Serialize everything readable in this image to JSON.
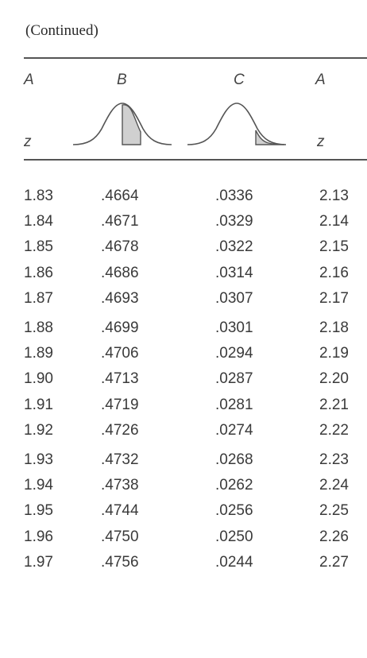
{
  "caption": "(Continued)",
  "headers": {
    "col1": "A",
    "col2": "B",
    "col3": "C",
    "col4": "A",
    "z_left": "z",
    "z_right": "z"
  },
  "curve_icons": [
    "normal-curve-b-shaded-center",
    "normal-curve-c-shaded-tail"
  ],
  "colors": {
    "shade": "#d0d0d0",
    "line": "#555555"
  },
  "rows": [
    {
      "z": "1.83",
      "b": ".4664",
      "c": ".0336",
      "z2": "2.13"
    },
    {
      "z": "1.84",
      "b": ".4671",
      "c": ".0329",
      "z2": "2.14"
    },
    {
      "z": "1.85",
      "b": ".4678",
      "c": ".0322",
      "z2": "2.15"
    },
    {
      "z": "1.86",
      "b": ".4686",
      "c": ".0314",
      "z2": "2.16"
    },
    {
      "z": "1.87",
      "b": ".4693",
      "c": ".0307",
      "z2": "2.17"
    },
    {
      "z": "1.88",
      "b": ".4699",
      "c": ".0301",
      "z2": "2.18"
    },
    {
      "z": "1.89",
      "b": ".4706",
      "c": ".0294",
      "z2": "2.19"
    },
    {
      "z": "1.90",
      "b": ".4713",
      "c": ".0287",
      "z2": "2.20"
    },
    {
      "z": "1.91",
      "b": ".4719",
      "c": ".0281",
      "z2": "2.21"
    },
    {
      "z": "1.92",
      "b": ".4726",
      "c": ".0274",
      "z2": "2.22"
    },
    {
      "z": "1.93",
      "b": ".4732",
      "c": ".0268",
      "z2": "2.23"
    },
    {
      "z": "1.94",
      "b": ".4738",
      "c": ".0262",
      "z2": "2.24"
    },
    {
      "z": "1.95",
      "b": ".4744",
      "c": ".0256",
      "z2": "2.25"
    },
    {
      "z": "1.96",
      "b": ".4750",
      "c": ".0250",
      "z2": "2.26"
    },
    {
      "z": "1.97",
      "b": ".4756",
      "c": ".0244",
      "z2": "2.27"
    }
  ]
}
